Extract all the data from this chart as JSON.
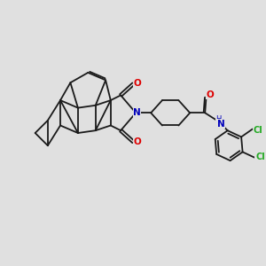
{
  "background_color": "#e0e0e0",
  "bond_color": "#1a1a1a",
  "bond_width": 1.3,
  "O_color": "#dd0000",
  "N_color": "#0000bb",
  "Cl_color": "#22aa22",
  "figsize": [
    3.0,
    3.0
  ],
  "dpi": 100,
  "xlim": [
    0,
    10
  ],
  "ylim": [
    0,
    10
  ]
}
